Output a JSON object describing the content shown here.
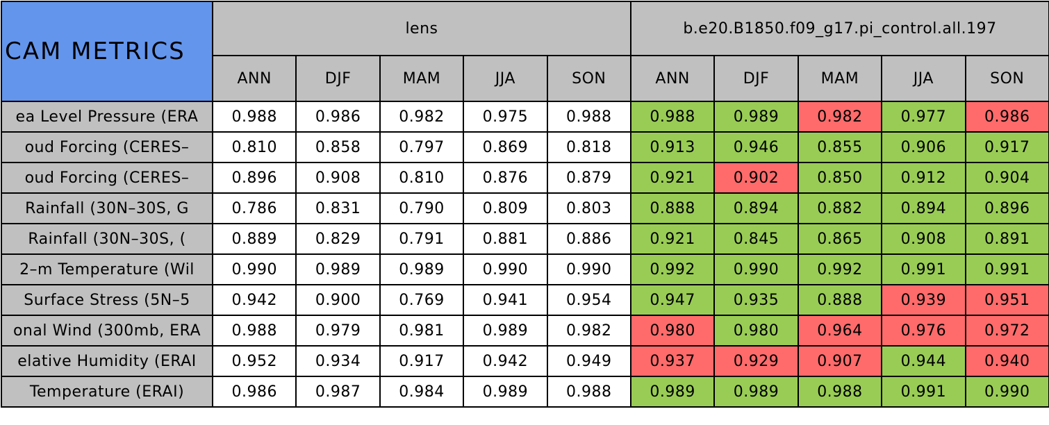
{
  "table": {
    "title": "CAM METRICS",
    "groups": [
      "lens",
      "b.e20.B1850.f09_g17.pi_control.all.197"
    ],
    "seasons": [
      [
        "ANN",
        "DJF",
        "MAM",
        "JJA",
        "SON"
      ],
      [
        "ANN",
        "DJF",
        "MAM",
        "JJA",
        "SON"
      ]
    ],
    "rows": [
      {
        "label": "ea Level Pressure (ERA",
        "values": [
          [
            "0.988",
            "0.986",
            "0.982",
            "0.975",
            "0.988"
          ],
          [
            "0.988",
            "0.989",
            "0.982",
            "0.977",
            "0.986"
          ]
        ],
        "colors": [
          "#99cc55",
          "#99cc55",
          "#ff6b6b",
          "#99cc55",
          "#ff6b6b"
        ]
      },
      {
        "label": "oud Forcing (CERES–",
        "values": [
          [
            "0.810",
            "0.858",
            "0.797",
            "0.869",
            "0.818"
          ],
          [
            "0.913",
            "0.946",
            "0.855",
            "0.906",
            "0.917"
          ]
        ],
        "colors": [
          "#99cc55",
          "#99cc55",
          "#99cc55",
          "#99cc55",
          "#99cc55"
        ]
      },
      {
        "label": "oud Forcing (CERES–",
        "values": [
          [
            "0.896",
            "0.908",
            "0.810",
            "0.876",
            "0.879"
          ],
          [
            "0.921",
            "0.902",
            "0.850",
            "0.912",
            "0.904"
          ]
        ],
        "colors": [
          "#99cc55",
          "#ff6b6b",
          "#99cc55",
          "#99cc55",
          "#99cc55"
        ]
      },
      {
        "label": "Rainfall (30N–30S, G",
        "values": [
          [
            "0.786",
            "0.831",
            "0.790",
            "0.809",
            "0.803"
          ],
          [
            "0.888",
            "0.894",
            "0.882",
            "0.894",
            "0.896"
          ]
        ],
        "colors": [
          "#99cc55",
          "#99cc55",
          "#99cc55",
          "#99cc55",
          "#99cc55"
        ]
      },
      {
        "label": "Rainfall (30N–30S, (",
        "values": [
          [
            "0.889",
            "0.829",
            "0.791",
            "0.881",
            "0.886"
          ],
          [
            "0.921",
            "0.845",
            "0.865",
            "0.908",
            "0.891"
          ]
        ],
        "colors": [
          "#99cc55",
          "#99cc55",
          "#99cc55",
          "#99cc55",
          "#99cc55"
        ]
      },
      {
        "label": "2–m Temperature (Wil",
        "values": [
          [
            "0.990",
            "0.989",
            "0.989",
            "0.990",
            "0.990"
          ],
          [
            "0.992",
            "0.990",
            "0.992",
            "0.991",
            "0.991"
          ]
        ],
        "colors": [
          "#99cc55",
          "#99cc55",
          "#99cc55",
          "#99cc55",
          "#99cc55"
        ]
      },
      {
        "label": "Surface Stress (5N–5",
        "values": [
          [
            "0.942",
            "0.900",
            "0.769",
            "0.941",
            "0.954"
          ],
          [
            "0.947",
            "0.935",
            "0.888",
            "0.939",
            "0.951"
          ]
        ],
        "colors": [
          "#99cc55",
          "#99cc55",
          "#99cc55",
          "#ff6b6b",
          "#ff6b6b"
        ]
      },
      {
        "label": "onal Wind (300mb, ERA",
        "values": [
          [
            "0.988",
            "0.979",
            "0.981",
            "0.989",
            "0.982"
          ],
          [
            "0.980",
            "0.980",
            "0.964",
            "0.976",
            "0.972"
          ]
        ],
        "colors": [
          "#ff6b6b",
          "#99cc55",
          "#ff6b6b",
          "#ff6b6b",
          "#ff6b6b"
        ]
      },
      {
        "label": "elative Humidity (ERAI",
        "values": [
          [
            "0.952",
            "0.934",
            "0.917",
            "0.942",
            "0.949"
          ],
          [
            "0.937",
            "0.929",
            "0.907",
            "0.944",
            "0.940"
          ]
        ],
        "colors": [
          "#ff6b6b",
          "#ff6b6b",
          "#ff6b6b",
          "#99cc55",
          "#ff6b6b"
        ]
      },
      {
        "label": "Temperature (ERAI)",
        "values": [
          [
            "0.986",
            "0.987",
            "0.984",
            "0.989",
            "0.988"
          ],
          [
            "0.989",
            "0.989",
            "0.988",
            "0.991",
            "0.990"
          ]
        ],
        "colors": [
          "#99cc55",
          "#99cc55",
          "#99cc55",
          "#99cc55",
          "#99cc55"
        ]
      }
    ]
  }
}
